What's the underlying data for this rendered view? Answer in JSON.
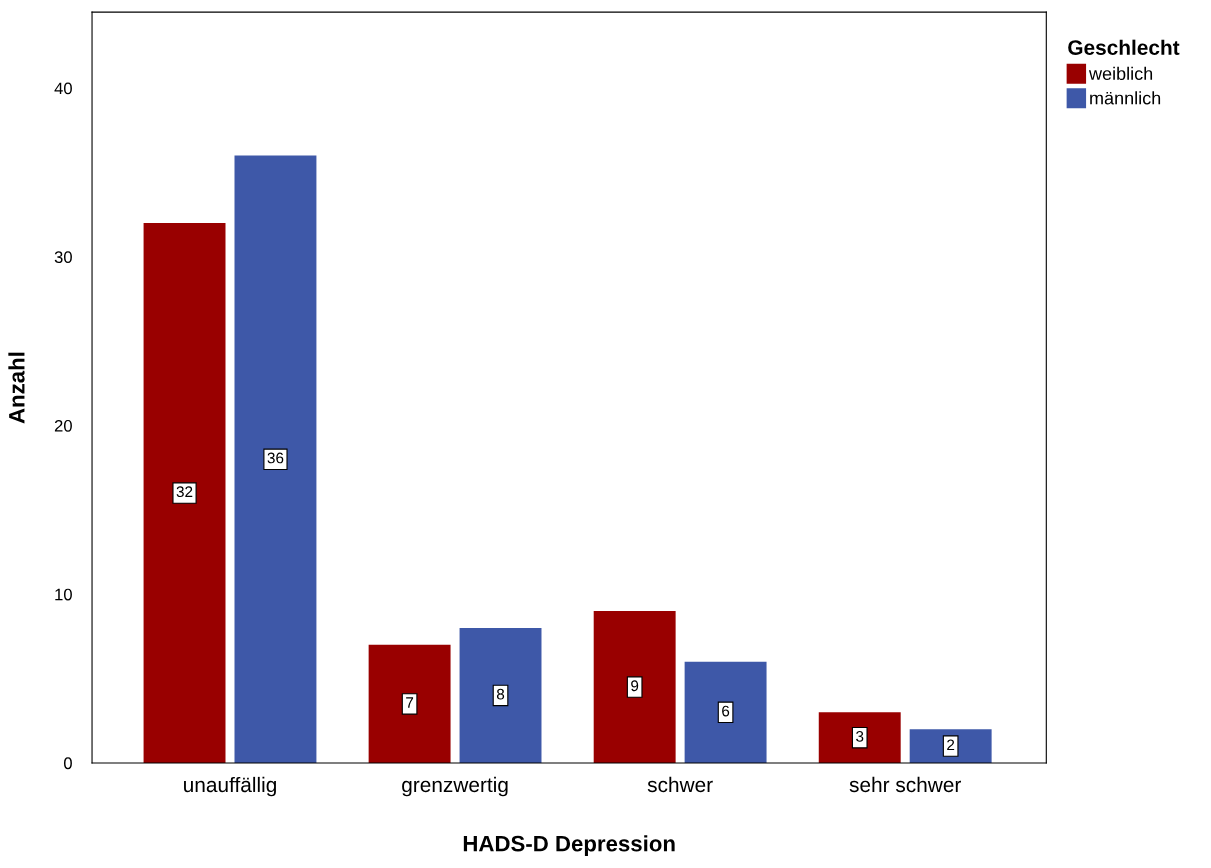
{
  "chart_data": {
    "type": "bar",
    "xlabel": "HADS-D Depression",
    "ylabel": "Anzahl",
    "legend_title": "Geschlecht",
    "categories": [
      "unauffällig",
      "grenzwertig",
      "schwer",
      "sehr schwer"
    ],
    "series": [
      {
        "name": "weiblich",
        "color": "#990000",
        "values": [
          32,
          7,
          9,
          3
        ]
      },
      {
        "name": "männlich",
        "color": "#3e58a8",
        "values": [
          36,
          8,
          6,
          2
        ]
      }
    ],
    "ylim": [
      0,
      44.5
    ],
    "yticks": [
      0,
      10,
      20,
      30,
      40
    ],
    "grid": false,
    "legend": "top right",
    "data_labels": true
  }
}
